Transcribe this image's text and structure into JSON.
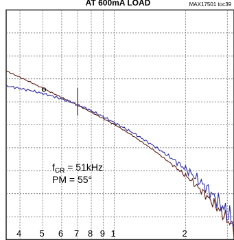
{
  "chart_data": {
    "type": "line",
    "title_partial": "AT 600mA LOAD",
    "ref_code": "MAX17501 toc39",
    "x_scale": "log",
    "x_range": [
      0.35,
      3.2
    ],
    "y_range": [
      0,
      10
    ],
    "x_tick_labels": [
      {
        "label": "4",
        "x": 0.4
      },
      {
        "label": "5",
        "x": 0.5
      },
      {
        "label": "6",
        "x": 0.6
      },
      {
        "label": "7",
        "x": 0.7
      },
      {
        "label": "8",
        "x": 0.8
      },
      {
        "label": "9",
        "x": 0.9
      },
      {
        "label": "1",
        "x": 1.0
      },
      {
        "label": "2",
        "x": 2.0
      }
    ],
    "grid": true,
    "series": [
      {
        "color": "#5a1a12",
        "points": [
          [
            0.35,
            7.35
          ],
          [
            0.45,
            6.82
          ],
          [
            0.55,
            6.38
          ],
          [
            0.65,
            6.02
          ],
          [
            0.75,
            5.7
          ],
          [
            0.85,
            5.4
          ],
          [
            1.0,
            5.02
          ],
          [
            1.2,
            4.52
          ],
          [
            1.5,
            3.82
          ],
          [
            1.8,
            3.18
          ],
          [
            2.1,
            2.6
          ],
          [
            2.4,
            2.0
          ],
          [
            2.7,
            1.42
          ],
          [
            3.0,
            0.88
          ],
          [
            3.2,
            0.5
          ]
        ]
      },
      {
        "color": "#2a2aa0",
        "points": [
          [
            0.35,
            6.7
          ],
          [
            0.45,
            6.48
          ],
          [
            0.55,
            6.25
          ],
          [
            0.65,
            6.0
          ],
          [
            0.75,
            5.75
          ],
          [
            0.85,
            5.48
          ],
          [
            1.0,
            5.1
          ],
          [
            1.2,
            4.65
          ],
          [
            1.5,
            4.02
          ],
          [
            1.8,
            3.45
          ],
          [
            2.1,
            2.9
          ],
          [
            2.4,
            2.35
          ],
          [
            2.7,
            1.75
          ],
          [
            3.0,
            1.15
          ],
          [
            3.2,
            0.7
          ]
        ]
      }
    ],
    "markers": [
      {
        "label": "crossover",
        "x": 0.505,
        "y": 6.53
      }
    ],
    "annotation": {
      "line1_main": "f",
      "line1_sub": "CR",
      "line1_rest": " = 51kHz",
      "line2": "PM = 55°"
    }
  }
}
